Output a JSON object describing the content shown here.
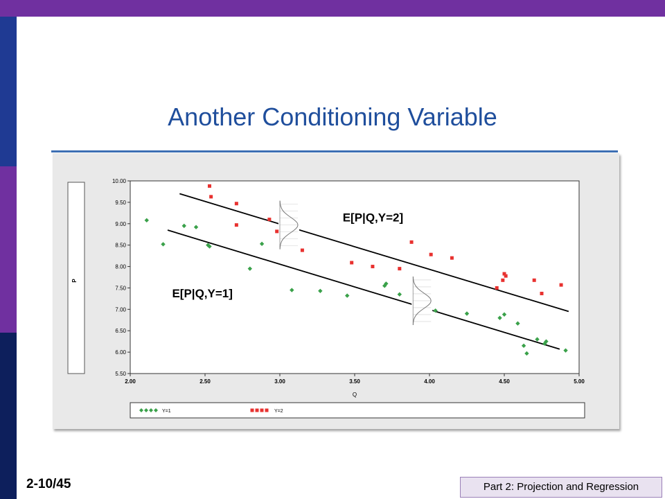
{
  "slide": {
    "title": "Another Conditioning Variable",
    "number": "2-10/45",
    "footer": "Part 2: Projection and Regression"
  },
  "colors": {
    "top_bar": "#7030a0",
    "side_top": "#1f3a93",
    "side_mid": "#7030a0",
    "side_bottom": "#0d1f5c",
    "title": "#1f4e9c",
    "series_y1": "#3aa14a",
    "series_y2": "#e8312f"
  },
  "chart_data": {
    "type": "scatter",
    "xlabel": "Q",
    "ylabel": "P",
    "xlim": [
      2.0,
      5.0
    ],
    "ylim": [
      5.5,
      10.0
    ],
    "x_ticks": [
      "2.00",
      "2.50",
      "3.00",
      "3.50",
      "4.00",
      "4.50",
      "5.00"
    ],
    "y_ticks": [
      "5.50",
      "6.00",
      "6.50",
      "7.00",
      "7.50",
      "8.00",
      "8.50",
      "9.00",
      "9.50",
      "10.00"
    ],
    "legend": [
      "Y=1",
      "Y=2"
    ],
    "legend_position": "bottom",
    "series": [
      {
        "name": "Y=1",
        "marker": "diamond",
        "points": [
          [
            2.11,
            9.08
          ],
          [
            2.22,
            8.52
          ],
          [
            2.36,
            8.95
          ],
          [
            2.44,
            8.92
          ],
          [
            2.52,
            8.5
          ],
          [
            2.53,
            8.47
          ],
          [
            2.8,
            7.95
          ],
          [
            2.88,
            8.53
          ],
          [
            3.08,
            7.45
          ],
          [
            3.27,
            7.43
          ],
          [
            3.45,
            7.32
          ],
          [
            3.7,
            7.55
          ],
          [
            3.71,
            7.6
          ],
          [
            3.8,
            7.35
          ],
          [
            4.04,
            6.97
          ],
          [
            4.25,
            6.9
          ],
          [
            4.47,
            6.8
          ],
          [
            4.5,
            6.88
          ],
          [
            4.59,
            6.67
          ],
          [
            4.63,
            6.15
          ],
          [
            4.65,
            5.97
          ],
          [
            4.72,
            6.3
          ],
          [
            4.77,
            6.2
          ],
          [
            4.78,
            6.25
          ],
          [
            4.91,
            6.04
          ]
        ]
      },
      {
        "name": "Y=2",
        "marker": "square",
        "points": [
          [
            2.53,
            9.88
          ],
          [
            2.54,
            9.63
          ],
          [
            2.71,
            9.47
          ],
          [
            2.71,
            8.97
          ],
          [
            2.93,
            9.1
          ],
          [
            2.98,
            8.82
          ],
          [
            3.15,
            8.38
          ],
          [
            3.48,
            8.09
          ],
          [
            3.62,
            8.0
          ],
          [
            3.8,
            7.95
          ],
          [
            3.88,
            8.57
          ],
          [
            4.01,
            8.28
          ],
          [
            4.15,
            8.2
          ],
          [
            4.45,
            7.5
          ],
          [
            4.49,
            7.68
          ],
          [
            4.5,
            7.83
          ],
          [
            4.51,
            7.78
          ],
          [
            4.7,
            7.68
          ],
          [
            4.75,
            7.37
          ],
          [
            4.88,
            7.57
          ]
        ]
      }
    ],
    "lines": [
      {
        "label": "E[P|Q,Y=2]",
        "from": [
          2.33,
          9.7
        ],
        "to": [
          4.93,
          6.95
        ]
      },
      {
        "label": "E[P|Q,Y=1]",
        "from": [
          2.25,
          8.85
        ],
        "to": [
          4.87,
          6.07
        ]
      }
    ],
    "densities": [
      {
        "at_x": 3.0,
        "center_y": 8.97
      },
      {
        "at_x": 3.89,
        "center_y": 7.2
      }
    ]
  }
}
